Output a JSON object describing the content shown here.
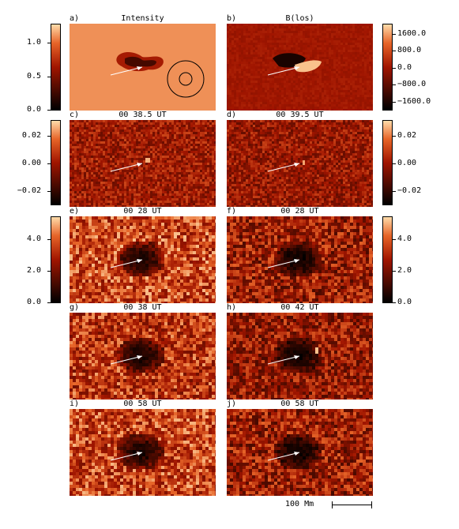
{
  "panels": [
    {
      "id": "a",
      "label": "a)",
      "title": "Intensity",
      "kind": "intensity"
    },
    {
      "id": "b",
      "label": "b)",
      "title": "B(los)",
      "kind": "blos"
    },
    {
      "id": "c",
      "label": "c)",
      "title": "00 38.5 UT",
      "kind": "diff"
    },
    {
      "id": "d",
      "label": "d)",
      "title": "00 39.5 UT",
      "kind": "diff"
    },
    {
      "id": "e",
      "label": "e)",
      "title": "00 28 UT",
      "kind": "power"
    },
    {
      "id": "f",
      "label": "f)",
      "title": "00 28 UT",
      "kind": "power"
    },
    {
      "id": "g",
      "label": "g)",
      "title": "00 38 UT",
      "kind": "power"
    },
    {
      "id": "h",
      "label": "h)",
      "title": "00 42 UT",
      "kind": "power"
    },
    {
      "id": "i",
      "label": "i)",
      "title": "00 58 UT",
      "kind": "power"
    },
    {
      "id": "j",
      "label": "j)",
      "title": "00 58 UT",
      "kind": "power"
    }
  ],
  "colorbars": {
    "intensity": {
      "ticks": [
        "1.0",
        "0.5",
        "0.0"
      ]
    },
    "blos": {
      "ticks": [
        "1600.0",
        "800.0",
        "0.0",
        "−800.0",
        "−1600.0"
      ]
    },
    "diff_left": {
      "ticks": [
        "0.02",
        "0.00",
        "−0.02"
      ]
    },
    "diff_right": {
      "ticks": [
        "0.02",
        "0.00",
        "−0.02"
      ]
    },
    "power_left": {
      "ticks": [
        "4.0",
        "2.0",
        "0.0"
      ]
    },
    "power_right": {
      "ticks": [
        "4.0",
        "2.0",
        "0.0"
      ]
    }
  },
  "scale": {
    "label": "100 Mm"
  },
  "colors": {
    "background": "#ffffff",
    "low": "#000000",
    "mid": "#a01500",
    "high": "#ffdcaa",
    "arrow": "#ffffff"
  }
}
